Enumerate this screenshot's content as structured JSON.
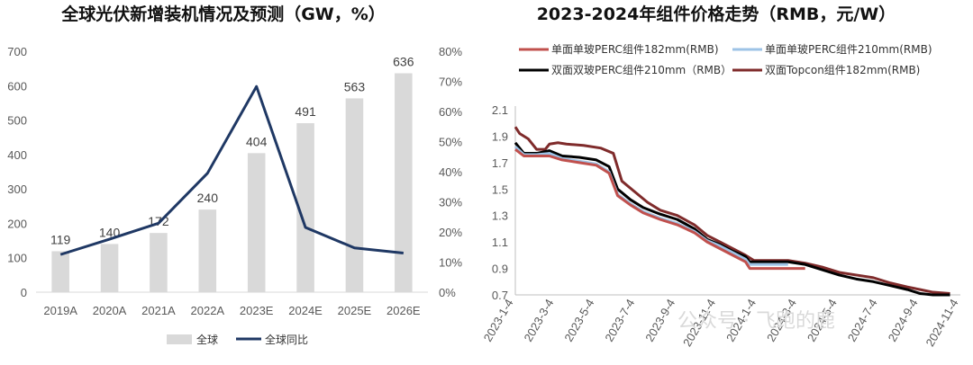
{
  "chart_data": [
    {
      "type": "bar+line",
      "title": "全球光伏新增装机情况及预测（GW，%）",
      "categories": [
        "2019A",
        "2020A",
        "2021A",
        "2022A",
        "2023E",
        "2024E",
        "2025E",
        "2026E"
      ],
      "series": [
        {
          "name": "全球",
          "type": "bar",
          "axis": "left",
          "color": "#d9d9d9",
          "values": [
            119,
            140,
            172,
            240,
            404,
            491,
            563,
            636
          ],
          "labels": [
            "119",
            "140",
            "172",
            "240",
            "404",
            "491",
            "563",
            "636"
          ]
        },
        {
          "name": "全球同比",
          "type": "line",
          "axis": "right",
          "color": "#1f3864",
          "values": [
            12.5,
            17.6,
            22.9,
            39.5,
            68.3,
            21.5,
            14.7,
            13.0
          ]
        }
      ],
      "yleft": {
        "min": 0,
        "max": 700,
        "ticks": [
          "0",
          "100",
          "200",
          "300",
          "400",
          "500",
          "600",
          "700"
        ]
      },
      "yright": {
        "min": 0,
        "max": 80,
        "ticks": [
          "0%",
          "10%",
          "20%",
          "30%",
          "40%",
          "50%",
          "60%",
          "70%",
          "80%"
        ]
      },
      "legend_position": "bottom"
    },
    {
      "type": "line",
      "title": "2023-2024年组件价格走势（RMB，元/W）",
      "x_ticks": [
        "2023-1-4",
        "2023-3-4",
        "2023-5-4",
        "2023-7-4",
        "2023-9-4",
        "2023-11-4",
        "2024-1-4",
        "2024-3-4",
        "2024-5-4",
        "2024-7-4",
        "2024-9-4",
        "2024-11-4"
      ],
      "y": {
        "min": 0.7,
        "max": 2.1,
        "ticks": [
          "0.7",
          "0.9",
          "1.1",
          "1.3",
          "1.5",
          "1.7",
          "1.9",
          "2.1"
        ]
      },
      "series": [
        {
          "name": "单面单玻PERC组件182mm(RMB)",
          "color": "#c0504d",
          "points": [
            [
              "2023-01-04",
              1.8
            ],
            [
              "2023-01-18",
              1.75
            ],
            [
              "2023-02-08",
              1.75
            ],
            [
              "2023-03-01",
              1.75
            ],
            [
              "2023-03-22",
              1.72
            ],
            [
              "2023-04-19",
              1.7
            ],
            [
              "2023-05-17",
              1.68
            ],
            [
              "2023-06-07",
              1.62
            ],
            [
              "2023-06-21",
              1.45
            ],
            [
              "2023-07-12",
              1.38
            ],
            [
              "2023-08-02",
              1.32
            ],
            [
              "2023-08-30",
              1.27
            ],
            [
              "2023-09-27",
              1.23
            ],
            [
              "2023-10-25",
              1.17
            ],
            [
              "2023-11-15",
              1.1
            ],
            [
              "2023-12-06",
              1.05
            ],
            [
              "2023-12-27",
              1.0
            ],
            [
              "2024-01-17",
              0.95
            ],
            [
              "2024-01-24",
              0.9
            ],
            [
              "2024-02-28",
              0.9
            ],
            [
              "2024-03-27",
              0.9
            ],
            [
              "2024-04-24",
              0.9
            ]
          ]
        },
        {
          "name": "单面单玻PERC组件210mm(RMB)",
          "color": "#9dc3e6",
          "points": [
            [
              "2023-01-04",
              1.82
            ],
            [
              "2023-01-18",
              1.76
            ],
            [
              "2023-02-08",
              1.76
            ],
            [
              "2023-03-01",
              1.77
            ],
            [
              "2023-03-22",
              1.73
            ],
            [
              "2023-04-19",
              1.71
            ],
            [
              "2023-05-17",
              1.69
            ],
            [
              "2023-06-07",
              1.63
            ],
            [
              "2023-06-21",
              1.46
            ],
            [
              "2023-07-12",
              1.39
            ],
            [
              "2023-08-02",
              1.33
            ],
            [
              "2023-08-30",
              1.28
            ],
            [
              "2023-09-27",
              1.24
            ],
            [
              "2023-10-25",
              1.18
            ],
            [
              "2023-11-15",
              1.11
            ],
            [
              "2023-12-06",
              1.07
            ],
            [
              "2023-12-27",
              1.02
            ],
            [
              "2024-01-17",
              0.97
            ],
            [
              "2024-01-24",
              0.93
            ],
            [
              "2024-02-28",
              0.93
            ],
            [
              "2024-03-27",
              0.93
            ]
          ]
        },
        {
          "name": "双面双玻PERC组件210mm（RMB）",
          "color": "#000000",
          "points": [
            [
              "2023-01-04",
              1.85
            ],
            [
              "2023-01-18",
              1.77
            ],
            [
              "2023-02-08",
              1.77
            ],
            [
              "2023-03-01",
              1.79
            ],
            [
              "2023-03-22",
              1.75
            ],
            [
              "2023-04-19",
              1.74
            ],
            [
              "2023-05-17",
              1.72
            ],
            [
              "2023-06-07",
              1.67
            ],
            [
              "2023-06-21",
              1.5
            ],
            [
              "2023-07-12",
              1.42
            ],
            [
              "2023-08-02",
              1.36
            ],
            [
              "2023-08-30",
              1.31
            ],
            [
              "2023-09-27",
              1.27
            ],
            [
              "2023-10-25",
              1.2
            ],
            [
              "2023-11-15",
              1.12
            ],
            [
              "2023-12-06",
              1.08
            ],
            [
              "2023-12-27",
              1.03
            ],
            [
              "2024-01-17",
              0.99
            ],
            [
              "2024-01-24",
              0.95
            ],
            [
              "2024-03-27",
              0.95
            ],
            [
              "2024-04-24",
              0.93
            ],
            [
              "2024-05-22",
              0.89
            ],
            [
              "2024-06-19",
              0.85
            ],
            [
              "2024-07-17",
              0.82
            ],
            [
              "2024-08-14",
              0.8
            ],
            [
              "2024-09-11",
              0.77
            ],
            [
              "2024-10-09",
              0.74
            ],
            [
              "2024-10-30",
              0.71
            ],
            [
              "2024-11-20",
              0.7
            ],
            [
              "2024-12-18",
              0.7
            ]
          ]
        },
        {
          "name": "双面Topcon组件182mm(RMB)",
          "color": "#7f2b2b",
          "points": [
            [
              "2023-01-04",
              1.97
            ],
            [
              "2023-01-11",
              1.92
            ],
            [
              "2023-01-25",
              1.88
            ],
            [
              "2023-02-08",
              1.8
            ],
            [
              "2023-02-22",
              1.8
            ],
            [
              "2023-03-01",
              1.84
            ],
            [
              "2023-03-15",
              1.85
            ],
            [
              "2023-03-29",
              1.84
            ],
            [
              "2023-04-26",
              1.83
            ],
            [
              "2023-05-24",
              1.81
            ],
            [
              "2023-06-14",
              1.77
            ],
            [
              "2023-06-28",
              1.56
            ],
            [
              "2023-07-19",
              1.48
            ],
            [
              "2023-08-09",
              1.4
            ],
            [
              "2023-08-30",
              1.34
            ],
            [
              "2023-09-27",
              1.3
            ],
            [
              "2023-10-25",
              1.23
            ],
            [
              "2023-11-15",
              1.15
            ],
            [
              "2023-12-06",
              1.1
            ],
            [
              "2023-12-27",
              1.05
            ],
            [
              "2024-01-17",
              1.0
            ],
            [
              "2024-01-31",
              0.96
            ],
            [
              "2024-03-27",
              0.96
            ],
            [
              "2024-04-24",
              0.94
            ],
            [
              "2024-05-22",
              0.91
            ],
            [
              "2024-06-19",
              0.87
            ],
            [
              "2024-07-17",
              0.85
            ],
            [
              "2024-08-14",
              0.83
            ],
            [
              "2024-09-11",
              0.79
            ],
            [
              "2024-10-09",
              0.76
            ],
            [
              "2024-10-30",
              0.74
            ],
            [
              "2024-11-20",
              0.72
            ],
            [
              "2024-12-18",
              0.71
            ]
          ]
        }
      ],
      "legend_position": "top"
    }
  ],
  "watermark": "公众号 · 飞跑的鹿"
}
